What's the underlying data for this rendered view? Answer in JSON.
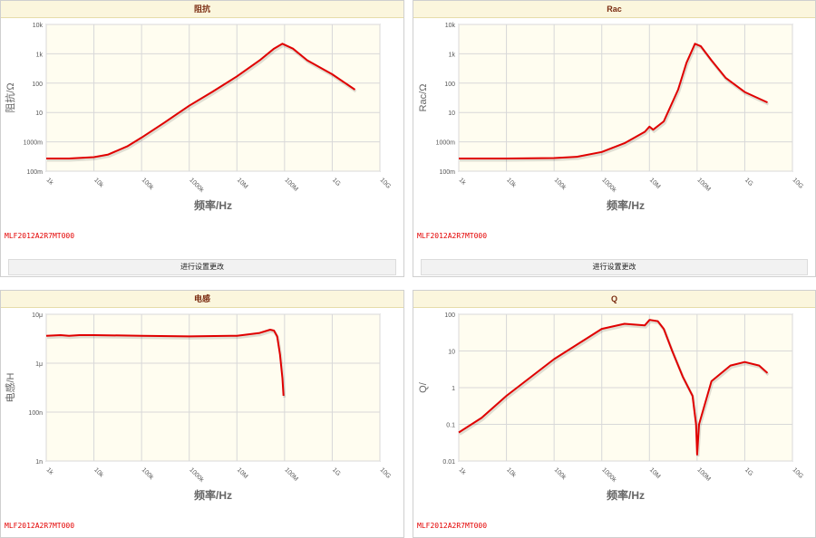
{
  "part_number": "MLF2012A2R7MT000",
  "button_label": "进行设置更改",
  "colors": {
    "curve": "#e00000",
    "plot_bg": "#fffdf0",
    "header_bg": "#fbf6dd",
    "title": "#7a2b10"
  },
  "chart_data": [
    {
      "title": "阻抗",
      "type": "line",
      "ylabel": "阻抗/Ω",
      "xlabel": "频率/Hz",
      "x_scale": "log",
      "y_scale": "log",
      "xticks": [
        "1k",
        "10k",
        "100k",
        "1000k",
        "10M",
        "100M",
        "1G",
        "10G"
      ],
      "yticks": [
        "100m",
        "1000m",
        "10",
        "100",
        "1k",
        "10k"
      ],
      "xlim": [
        1000,
        10000000000
      ],
      "ylim": [
        0.1,
        10000
      ],
      "series": [
        {
          "x": [
            1000,
            3000,
            10000,
            20000,
            50000,
            100000,
            300000,
            1000000,
            3000000,
            10000000,
            30000000,
            60000000,
            90000000,
            150000000,
            300000000,
            1000000000,
            3000000000
          ],
          "y": [
            0.27,
            0.27,
            0.3,
            0.37,
            0.7,
            1.4,
            4.5,
            17,
            50,
            170,
            600,
            1500,
            2200,
            1500,
            600,
            200,
            60
          ]
        }
      ]
    },
    {
      "title": "Rac",
      "type": "line",
      "ylabel": "Rac/Ω",
      "xlabel": "频率/Hz",
      "x_scale": "log",
      "y_scale": "log",
      "xticks": [
        "1k",
        "10k",
        "100k",
        "1000k",
        "10M",
        "100M",
        "1G",
        "10G"
      ],
      "yticks": [
        "100m",
        "1000m",
        "10",
        "100",
        "1k",
        "10k"
      ],
      "xlim": [
        1000,
        10000000000
      ],
      "ylim": [
        0.1,
        10000
      ],
      "series": [
        {
          "x": [
            1000,
            10000,
            100000,
            300000,
            1000000,
            3000000,
            8000000,
            10000000,
            12000000,
            20000000,
            40000000,
            60000000,
            90000000,
            120000000,
            200000000,
            400000000,
            1000000000,
            3000000000
          ],
          "y": [
            0.27,
            0.27,
            0.28,
            0.31,
            0.45,
            0.9,
            2.2,
            3.3,
            2.6,
            5,
            60,
            500,
            2200,
            1800,
            600,
            150,
            50,
            22
          ]
        }
      ]
    },
    {
      "title": "电感",
      "type": "line",
      "ylabel": "电感/H",
      "xlabel": "频率/Hz",
      "x_scale": "log",
      "y_scale": "log",
      "xticks": [
        "1k",
        "10k",
        "100k",
        "1000k",
        "10M",
        "100M",
        "1G",
        "10G"
      ],
      "yticks": [
        "1n",
        "100n",
        "1μ",
        "10μ"
      ],
      "xlim": [
        1000,
        10000000000
      ],
      "ylim": [
        1e-09,
        1e-05
      ],
      "series": [
        {
          "x": [
            1000,
            2000,
            3000,
            5000,
            10000,
            100000,
            1000000,
            10000000,
            30000000,
            50000000,
            60000000,
            70000000,
            80000000,
            90000000,
            95000000
          ],
          "y": [
            2.6e-06,
            2.7e-06,
            2.6e-06,
            2.7e-06,
            2.7e-06,
            2.6e-06,
            2.5e-06,
            2.6e-06,
            3.1e-06,
            3.8e-06,
            3.6e-06,
            2.5e-06,
            8e-07,
            1.8e-07,
            6e-08
          ]
        }
      ]
    },
    {
      "title": "Q",
      "type": "line",
      "ylabel": "Q/",
      "xlabel": "频率/Hz",
      "x_scale": "log",
      "y_scale": "log",
      "xticks": [
        "1k",
        "10k",
        "100k",
        "1000k",
        "10M",
        "100M",
        "1G",
        "10G"
      ],
      "yticks": [
        "0.01",
        "0.1",
        "1",
        "10",
        "100"
      ],
      "xlim": [
        1000,
        10000000000
      ],
      "ylim": [
        0.01,
        100
      ],
      "series": [
        {
          "x": [
            1000,
            3000,
            10000,
            100000,
            1000000,
            3000000,
            8000000,
            10000000,
            10500000,
            15000000,
            20000000,
            30000000,
            50000000,
            80000000,
            95000000,
            100000000,
            110000000,
            200000000,
            500000000,
            1000000000,
            2000000000,
            3000000000
          ],
          "y": [
            0.06,
            0.15,
            0.6,
            6,
            40,
            55,
            50,
            70,
            70,
            65,
            40,
            10,
            2,
            0.6,
            0.1,
            0.015,
            0.1,
            1.5,
            4,
            5,
            4,
            2.5
          ]
        }
      ]
    }
  ]
}
